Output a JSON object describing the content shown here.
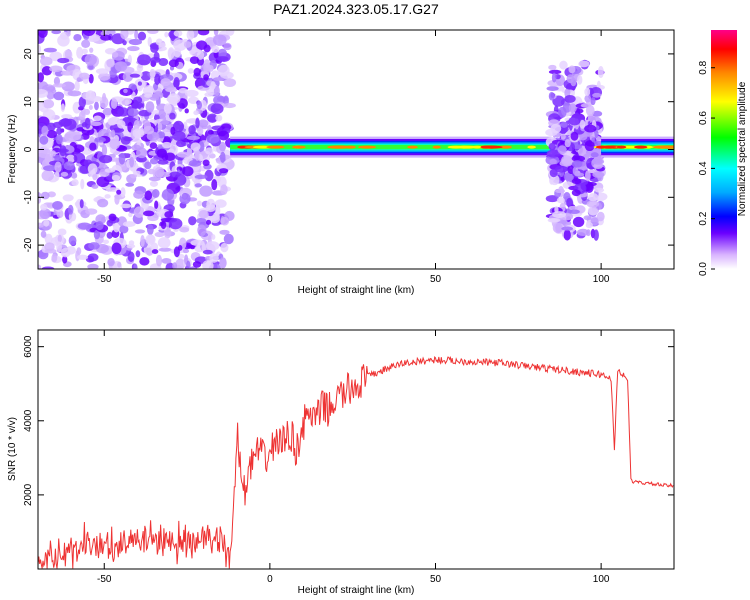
{
  "figure": {
    "title": "PAZ1.2024.323.05.17.G27"
  },
  "chart_data": [
    {
      "type": "heatmap",
      "xlabel": "Height of straight line (km)",
      "ylabel": "Frequency (Hz)",
      "xlim": [
        -70,
        122
      ],
      "ylim": [
        -25,
        25
      ],
      "xticks": [
        -50,
        0,
        50,
        100
      ],
      "yticks": [
        -20,
        -10,
        0,
        10,
        20
      ],
      "colorbar": {
        "label": "Normalized spectral amplitude",
        "range": [
          0,
          0.95
        ],
        "ticks": [
          0.0,
          0.2,
          0.4,
          0.6,
          0.8
        ]
      },
      "regions": [
        {
          "x": [
            -70,
            -12
          ],
          "description": "broadband noise",
          "freq_spread": [
            -25,
            25
          ]
        },
        {
          "x": [
            -12,
            85
          ],
          "description": "narrow band",
          "freq_center": 0.5
        },
        {
          "x": [
            85,
            100
          ],
          "description": "scattered",
          "freq_spread": [
            -18,
            18
          ]
        },
        {
          "x": [
            100,
            122
          ],
          "description": "narrow band",
          "freq_center": 0.5
        }
      ]
    },
    {
      "type": "line",
      "xlabel": "Height of straight line (km)",
      "ylabel": "SNR (10 * v/v)",
      "xlim": [
        -70,
        122
      ],
      "ylim": [
        0,
        6450
      ],
      "xticks": [
        -50,
        0,
        50,
        100
      ],
      "yticks": [
        2000,
        4000,
        6000
      ],
      "series": [
        {
          "color": "#ee3333",
          "x": [
            -70,
            -60,
            -50,
            -40,
            -30,
            -20,
            -15,
            -12,
            -11,
            -10,
            -9,
            -8,
            -6,
            -4,
            -2,
            0,
            2,
            4,
            6,
            8,
            10,
            12,
            14,
            16,
            18,
            20,
            25,
            30,
            35,
            40,
            45,
            50,
            55,
            60,
            65,
            70,
            75,
            80,
            85,
            90,
            95,
            100,
            103,
            104,
            105,
            108,
            109,
            110,
            115,
            120,
            122
          ],
          "values": [
            300,
            450,
            600,
            700,
            750,
            800,
            700,
            250,
            1500,
            3800,
            2800,
            2000,
            2700,
            3200,
            3000,
            3100,
            3500,
            3400,
            3700,
            3200,
            3900,
            4200,
            4000,
            4400,
            4300,
            4600,
            4900,
            5200,
            5400,
            5550,
            5600,
            5650,
            5620,
            5600,
            5580,
            5560,
            5500,
            5450,
            5400,
            5350,
            5300,
            5250,
            5150,
            3200,
            5400,
            5100,
            2400,
            2350,
            2300,
            2250,
            2250
          ]
        }
      ]
    }
  ]
}
